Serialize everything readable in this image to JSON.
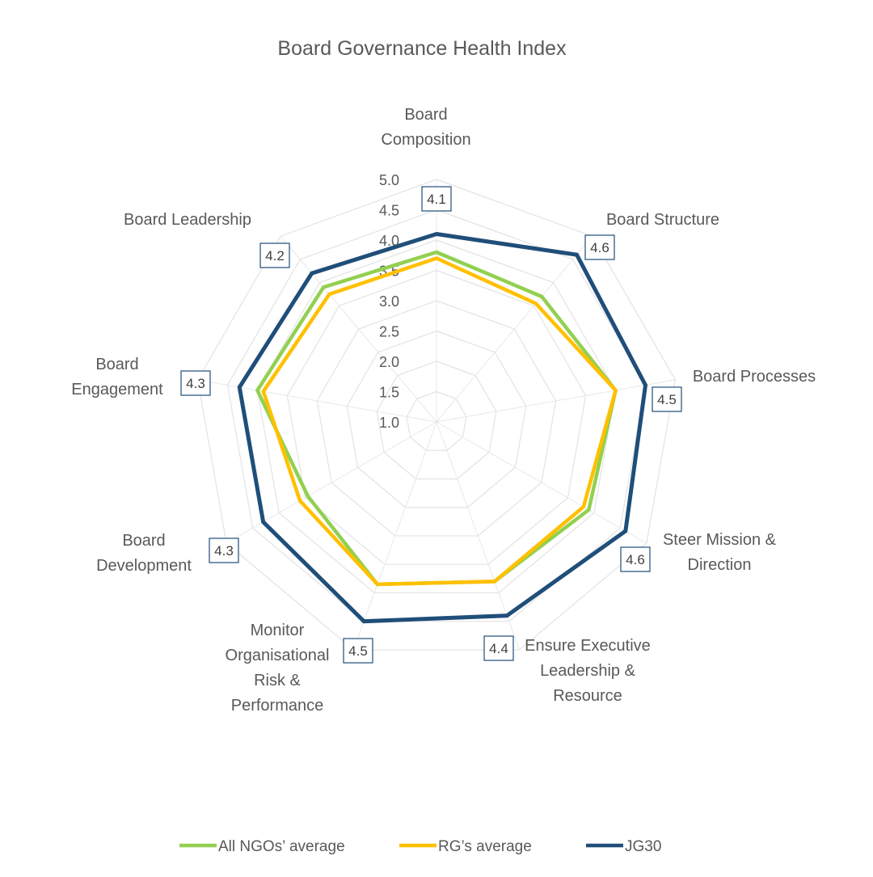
{
  "chart_data": {
    "type": "radar",
    "title": "Board Governance Health Index",
    "categories": [
      [
        "Board",
        "Composition"
      ],
      [
        "Board Structure"
      ],
      [
        "Board Processes"
      ],
      [
        "Steer Mission &",
        "Direction"
      ],
      [
        "Ensure Executive",
        "Leadership &",
        "Resource"
      ],
      [
        "Monitor",
        "Organisational",
        "Risk &",
        "Performance"
      ],
      [
        "Board",
        "Development"
      ],
      [
        "Board",
        "Engagement"
      ],
      [
        "Board Leadership"
      ]
    ],
    "rlim": [
      1.0,
      5.0
    ],
    "ticks": [
      "1.0",
      "1.5",
      "2.0",
      "2.5",
      "3.0",
      "3.5",
      "4.0",
      "4.5",
      "5.0"
    ],
    "series": [
      {
        "name": "All NGOs’ average",
        "color": "#92d050",
        "values": [
          3.8,
          3.7,
          4.0,
          3.9,
          3.8,
          3.85,
          3.45,
          4.0,
          3.9
        ]
      },
      {
        "name": "RG’s average",
        "color": "#ffc000",
        "values": [
          3.7,
          3.55,
          4.0,
          3.8,
          3.8,
          3.85,
          3.6,
          3.9,
          3.75
        ]
      },
      {
        "name": "JG30",
        "color": "#1f4e79",
        "values": [
          4.1,
          4.6,
          4.5,
          4.6,
          4.4,
          4.5,
          4.3,
          4.3,
          4.2
        ],
        "data_labels": [
          "4.1",
          "4.6",
          "4.5",
          "4.6",
          "4.4",
          "4.5",
          "4.3",
          "4.3",
          "4.2"
        ]
      }
    ],
    "legend_position": "bottom",
    "grid": true
  }
}
